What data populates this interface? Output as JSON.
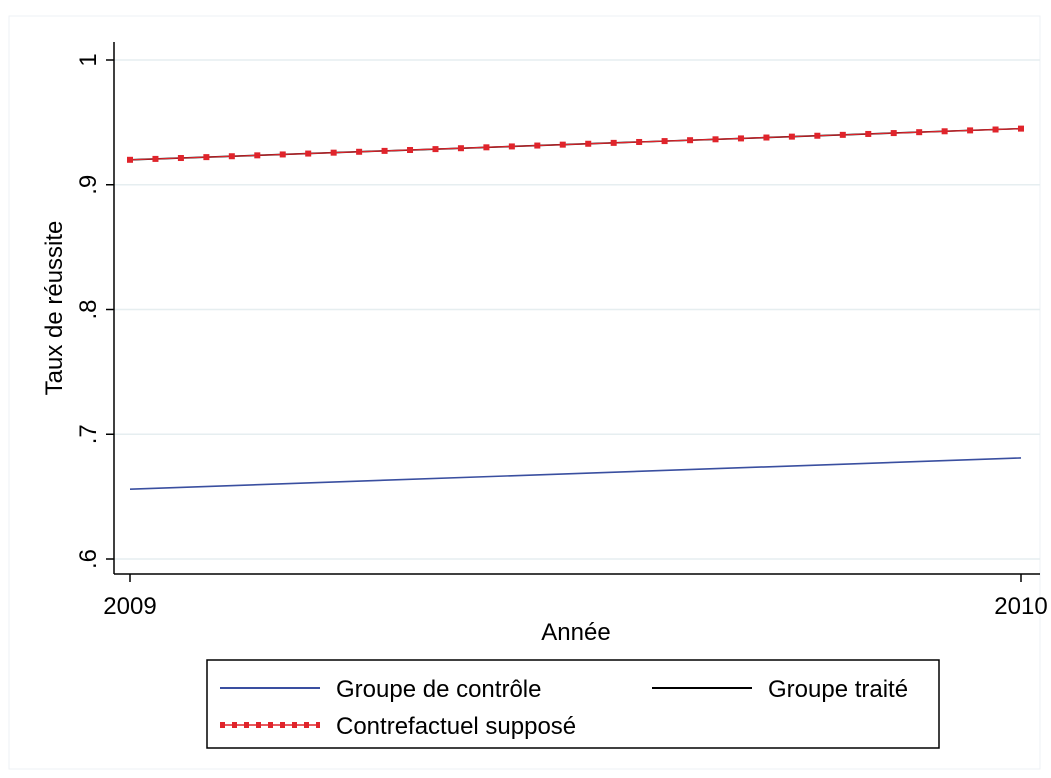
{
  "chart_data": {
    "type": "line",
    "xlabel": "Année",
    "ylabel": "Taux de réussite",
    "xlim": [
      2009,
      2010
    ],
    "ylim": [
      0.6,
      1.0
    ],
    "x_ticks": [
      {
        "value": 2009,
        "label": "2009"
      },
      {
        "value": 2010,
        "label": "2010"
      }
    ],
    "y_ticks": [
      {
        "value": 0.6,
        "label": ".6"
      },
      {
        "value": 0.7,
        "label": ".7"
      },
      {
        "value": 0.8,
        "label": ".8"
      },
      {
        "value": 0.9,
        "label": ".9"
      },
      {
        "value": 1.0,
        "label": "1"
      }
    ],
    "grid": true,
    "legend_position": "bottom",
    "series": [
      {
        "name": "Groupe de contrôle",
        "x": [
          2009,
          2010
        ],
        "y": [
          0.656,
          0.681
        ],
        "color": "#3a4fa0",
        "style": "solid"
      },
      {
        "name": "Groupe traité",
        "x": [
          2009,
          2010
        ],
        "y": [
          0.92,
          0.945
        ],
        "color": "#000000",
        "style": "solid"
      },
      {
        "name": "Contrefactuel supposé",
        "x": [
          2009,
          2010
        ],
        "y": [
          0.92,
          0.945
        ],
        "color": "#e0242b",
        "style": "dotted"
      }
    ]
  }
}
